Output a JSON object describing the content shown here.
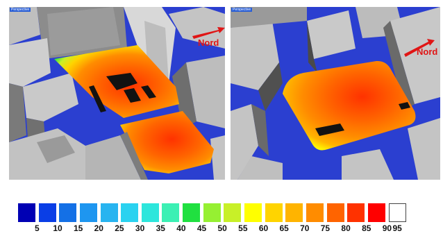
{
  "viewports": {
    "left": {
      "label": "Perspective",
      "north_label": "Nord"
    },
    "right": {
      "label": "Perspective",
      "north_label": "Nord"
    }
  },
  "legend": {
    "colors": [
      "#0000b4",
      "#0a3ee6",
      "#1470e6",
      "#1e96f0",
      "#28b4f0",
      "#2ad2f0",
      "#2de6dc",
      "#3cf0b4",
      "#20e040",
      "#96f032",
      "#c8f028",
      "#ffff00",
      "#ffd400",
      "#ffb400",
      "#ff8c00",
      "#ff6400",
      "#ff3200",
      "#ff0000",
      "#ffffff"
    ],
    "ticks": [
      "5",
      "10",
      "15",
      "20",
      "25",
      "30",
      "35",
      "40",
      "45",
      "50",
      "55",
      "60",
      "65",
      "70",
      "75",
      "80",
      "85",
      "90",
      "95"
    ]
  },
  "palette": {
    "ground": "#2b3fd0",
    "building": "#c4c4c4",
    "building_dark": "#6e6e6e",
    "hole": "#121212",
    "north_arrow": "#e01515"
  }
}
